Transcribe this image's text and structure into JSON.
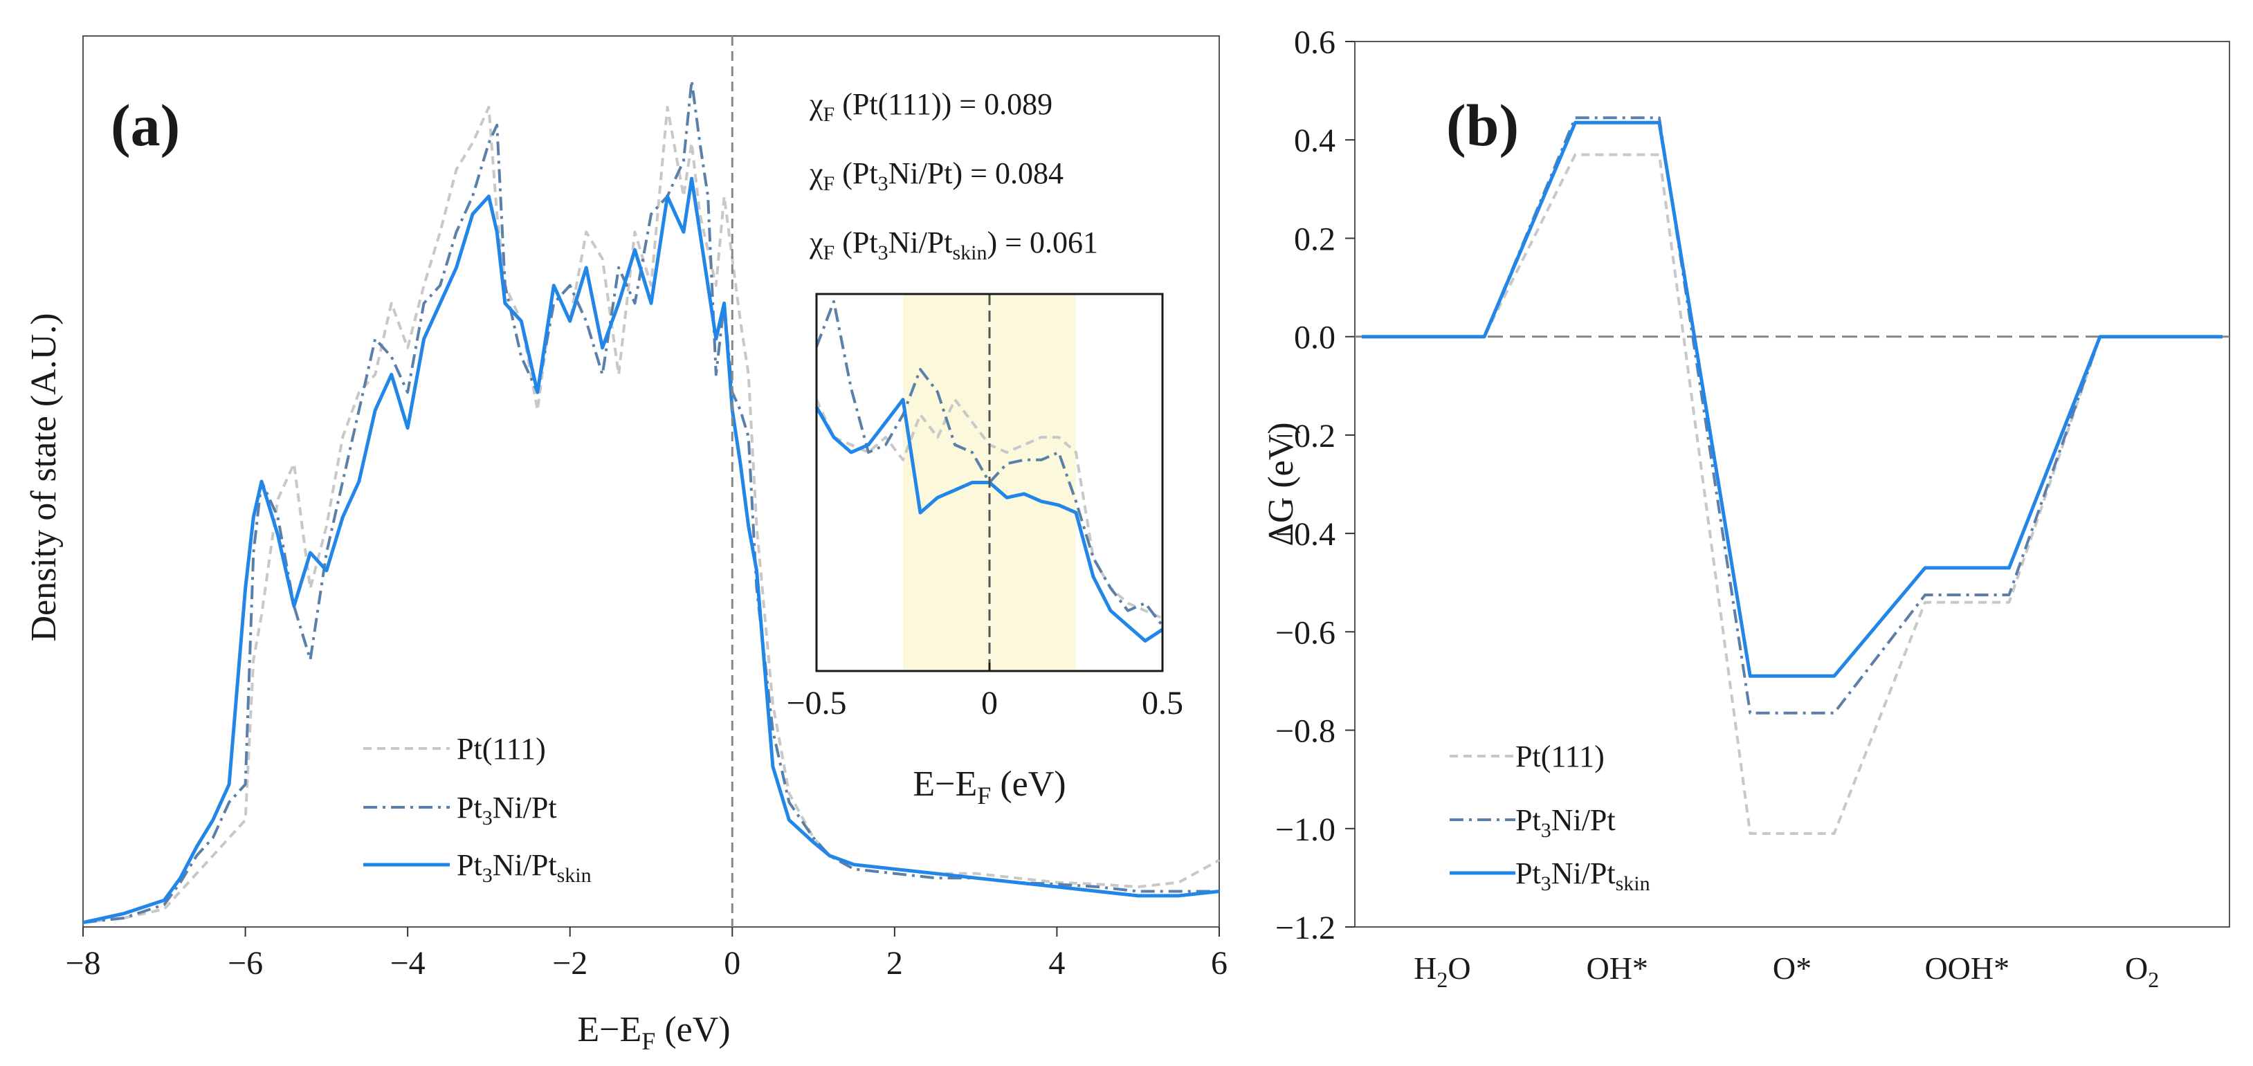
{
  "chart_data": [
    {
      "panel_label": "(a)",
      "type": "line",
      "xlabel": "E−E",
      "xlabel_sub": "F",
      "xlabel_unit": " (eV)",
      "ylabel": "Density of state (A.U.)",
      "xlim": [
        -8,
        6
      ],
      "ylim": [
        0,
        1.0
      ],
      "xticks": [
        "−8",
        "−6",
        "−4",
        "−2",
        "0",
        "2",
        "4",
        "6"
      ],
      "fermi_level_x": 0,
      "annotations": [
        {
          "chi": "χ",
          "sub": "F",
          "pre": " (Pt(111)) = ",
          "value": "0.089"
        },
        {
          "chi": "χ",
          "sub": "F",
          "pre": " (Pt",
          "sub2": "3",
          "mid": "Ni/Pt) = ",
          "value": "0.084"
        },
        {
          "chi": "χ",
          "sub": "F",
          "pre": " (Pt",
          "sub2": "3",
          "mid": "Ni/Pt",
          "sub3": "skin",
          "post": ") = ",
          "value": "0.061"
        }
      ],
      "legend": {
        "placement": "bottom-center",
        "entries": [
          {
            "main": "Pt(111)"
          },
          {
            "main": "Pt",
            "sub": "3",
            "rest": "Ni/Pt"
          },
          {
            "main": "Pt",
            "sub": "3",
            "rest": "Ni/Pt",
            "sub2": "skin"
          }
        ]
      },
      "series": [
        {
          "name": "Pt(111)",
          "color": "#c8c8c8",
          "style": "dashed",
          "x": [
            -8,
            -7.5,
            -7,
            -6.8,
            -6.6,
            -6.4,
            -6.2,
            -6.0,
            -5.9,
            -5.8,
            -5.6,
            -5.4,
            -5.2,
            -5.0,
            -4.8,
            -4.6,
            -4.4,
            -4.2,
            -4.0,
            -3.8,
            -3.6,
            -3.4,
            -3.2,
            -3.0,
            -2.9,
            -2.8,
            -2.6,
            -2.4,
            -2.2,
            -2.0,
            -1.8,
            -1.6,
            -1.4,
            -1.2,
            -1.0,
            -0.8,
            -0.6,
            -0.5,
            -0.4,
            -0.3,
            -0.2,
            -0.1,
            0.0,
            0.1,
            0.2,
            0.3,
            0.5,
            0.7,
            1.0,
            1.2,
            1.5,
            2.0,
            2.5,
            3.0,
            3.5,
            4.0,
            4.5,
            5.0,
            5.5,
            6.0
          ],
          "values": [
            0.005,
            0.01,
            0.02,
            0.04,
            0.06,
            0.08,
            0.1,
            0.12,
            0.3,
            0.35,
            0.48,
            0.52,
            0.38,
            0.45,
            0.55,
            0.6,
            0.62,
            0.7,
            0.65,
            0.72,
            0.78,
            0.85,
            0.88,
            0.92,
            0.8,
            0.72,
            0.68,
            0.58,
            0.72,
            0.68,
            0.78,
            0.75,
            0.62,
            0.78,
            0.72,
            0.92,
            0.82,
            0.88,
            0.8,
            0.76,
            0.72,
            0.82,
            0.75,
            0.68,
            0.62,
            0.45,
            0.25,
            0.15,
            0.1,
            0.08,
            0.07,
            0.065,
            0.06,
            0.06,
            0.055,
            0.05,
            0.048,
            0.045,
            0.05,
            0.075
          ]
        },
        {
          "name": "Pt3Ni/Pt",
          "color": "#5a7fa8",
          "style": "dashdot",
          "x": [
            -8,
            -7.5,
            -7,
            -6.8,
            -6.6,
            -6.4,
            -6.2,
            -6.0,
            -5.9,
            -5.8,
            -5.6,
            -5.4,
            -5.2,
            -5.0,
            -4.8,
            -4.6,
            -4.4,
            -4.2,
            -4.0,
            -3.8,
            -3.6,
            -3.4,
            -3.2,
            -3.0,
            -2.9,
            -2.8,
            -2.6,
            -2.4,
            -2.2,
            -2.0,
            -1.8,
            -1.6,
            -1.4,
            -1.2,
            -1.0,
            -0.8,
            -0.6,
            -0.5,
            -0.4,
            -0.3,
            -0.2,
            -0.1,
            0.0,
            0.1,
            0.2,
            0.3,
            0.5,
            0.7,
            1.0,
            1.2,
            1.5,
            2.0,
            2.5,
            3.0,
            3.5,
            4.0,
            4.5,
            5.0,
            5.5,
            6.0
          ],
          "values": [
            0.005,
            0.01,
            0.025,
            0.05,
            0.08,
            0.1,
            0.14,
            0.16,
            0.42,
            0.5,
            0.46,
            0.36,
            0.3,
            0.42,
            0.5,
            0.58,
            0.66,
            0.64,
            0.6,
            0.7,
            0.72,
            0.78,
            0.82,
            0.88,
            0.9,
            0.72,
            0.64,
            0.6,
            0.7,
            0.72,
            0.68,
            0.62,
            0.74,
            0.7,
            0.8,
            0.82,
            0.86,
            0.95,
            0.88,
            0.82,
            0.62,
            0.7,
            0.6,
            0.58,
            0.55,
            0.38,
            0.22,
            0.14,
            0.1,
            0.08,
            0.065,
            0.06,
            0.055,
            0.055,
            0.05,
            0.048,
            0.045,
            0.04,
            0.04,
            0.04
          ]
        },
        {
          "name": "Pt3Ni/Ptskin",
          "color": "#2186e8",
          "style": "solid",
          "x": [
            -8,
            -7.5,
            -7,
            -6.8,
            -6.6,
            -6.4,
            -6.2,
            -6.0,
            -5.9,
            -5.8,
            -5.6,
            -5.4,
            -5.2,
            -5.0,
            -4.8,
            -4.6,
            -4.4,
            -4.2,
            -4.0,
            -3.8,
            -3.6,
            -3.4,
            -3.2,
            -3.0,
            -2.9,
            -2.8,
            -2.6,
            -2.4,
            -2.2,
            -2.0,
            -1.8,
            -1.6,
            -1.4,
            -1.2,
            -1.0,
            -0.8,
            -0.6,
            -0.5,
            -0.4,
            -0.3,
            -0.2,
            -0.1,
            0.0,
            0.1,
            0.2,
            0.3,
            0.5,
            0.7,
            1.0,
            1.2,
            1.5,
            2.0,
            2.5,
            3.0,
            3.5,
            4.0,
            4.5,
            5.0,
            5.5,
            6.0
          ],
          "values": [
            0.005,
            0.015,
            0.03,
            0.055,
            0.09,
            0.12,
            0.16,
            0.38,
            0.46,
            0.5,
            0.44,
            0.36,
            0.42,
            0.4,
            0.46,
            0.5,
            0.58,
            0.62,
            0.56,
            0.66,
            0.7,
            0.74,
            0.8,
            0.82,
            0.78,
            0.7,
            0.68,
            0.6,
            0.72,
            0.68,
            0.74,
            0.65,
            0.7,
            0.76,
            0.7,
            0.82,
            0.78,
            0.84,
            0.78,
            0.72,
            0.66,
            0.7,
            0.58,
            0.52,
            0.45,
            0.4,
            0.18,
            0.12,
            0.095,
            0.08,
            0.07,
            0.065,
            0.06,
            0.055,
            0.05,
            0.045,
            0.04,
            0.035,
            0.035,
            0.04
          ]
        }
      ],
      "inset": {
        "xlim": [
          -0.5,
          0.5
        ],
        "ylim": [
          0,
          1
        ],
        "xticks": [
          "−0.5",
          "0",
          "0.5"
        ],
        "xlabel": "E−E",
        "xlabel_sub": "F",
        "xlabel_unit": " (eV)",
        "highlight_range": [
          -0.25,
          0.25
        ],
        "highlight_color": "#fbf8dc",
        "series": [
          {
            "name": "Pt(111)",
            "x": [
              -0.5,
              -0.45,
              -0.4,
              -0.35,
              -0.3,
              -0.25,
              -0.2,
              -0.15,
              -0.1,
              -0.05,
              0.0,
              0.05,
              0.1,
              0.15,
              0.2,
              0.25,
              0.3,
              0.35,
              0.4,
              0.45,
              0.5
            ],
            "values": [
              0.72,
              0.62,
              0.6,
              0.58,
              0.62,
              0.56,
              0.68,
              0.62,
              0.72,
              0.66,
              0.6,
              0.58,
              0.6,
              0.62,
              0.62,
              0.58,
              0.3,
              0.22,
              0.18,
              0.16,
              0.14
            ]
          },
          {
            "name": "Pt3Ni/Pt",
            "x": [
              -0.5,
              -0.45,
              -0.4,
              -0.35,
              -0.3,
              -0.25,
              -0.2,
              -0.15,
              -0.1,
              -0.05,
              0.0,
              0.05,
              0.1,
              0.15,
              0.2,
              0.25,
              0.3,
              0.35,
              0.4,
              0.45,
              0.5
            ],
            "values": [
              0.86,
              0.98,
              0.75,
              0.58,
              0.6,
              0.68,
              0.8,
              0.74,
              0.6,
              0.58,
              0.5,
              0.55,
              0.56,
              0.56,
              0.58,
              0.45,
              0.3,
              0.22,
              0.16,
              0.18,
              0.12
            ]
          },
          {
            "name": "Pt3Ni/Ptskin",
            "x": [
              -0.5,
              -0.45,
              -0.4,
              -0.35,
              -0.3,
              -0.25,
              -0.2,
              -0.15,
              -0.1,
              -0.05,
              0.0,
              0.05,
              0.1,
              0.15,
              0.2,
              0.25,
              0.3,
              0.35,
              0.4,
              0.45,
              0.5
            ],
            "values": [
              0.7,
              0.62,
              0.58,
              0.6,
              0.66,
              0.72,
              0.42,
              0.46,
              0.48,
              0.5,
              0.5,
              0.46,
              0.47,
              0.45,
              0.44,
              0.42,
              0.25,
              0.16,
              0.12,
              0.08,
              0.11
            ]
          }
        ]
      }
    },
    {
      "panel_label": "(b)",
      "type": "line",
      "ylabel": "ΔG (eV)",
      "ylim": [
        -1.2,
        0.6
      ],
      "yticks": [
        "0.6",
        "0.4",
        "0.2",
        "0.0",
        "−0.2",
        "−0.4",
        "−0.6",
        "−0.8",
        "−1.0",
        "−1.2"
      ],
      "ytick_values": [
        0.6,
        0.4,
        0.2,
        0.0,
        -0.2,
        -0.4,
        -0.6,
        -0.8,
        -1.0,
        -1.2
      ],
      "categories": [
        {
          "main": "H",
          "sub": "2",
          "rest": "O"
        },
        {
          "main": "OH*"
        },
        {
          "main": "O*"
        },
        {
          "main": "OOH*"
        },
        {
          "main": "O",
          "sub": "2"
        }
      ],
      "zero_line": 0.0,
      "legend": {
        "placement": "bottom-left",
        "entries": [
          {
            "main": "Pt(111)"
          },
          {
            "main": "Pt",
            "sub": "3",
            "rest": "Ni/Pt"
          },
          {
            "main": "Pt",
            "sub": "3",
            "rest": "Ni/Pt",
            "sub2": "skin"
          }
        ]
      },
      "series": [
        {
          "name": "Pt(111)",
          "color": "#c8c8c8",
          "style": "dashed",
          "values": [
            0.0,
            0.37,
            -1.01,
            -0.54,
            0.0
          ]
        },
        {
          "name": "Pt3Ni/Pt",
          "color": "#5a7fa8",
          "style": "dashdot",
          "values": [
            0.0,
            0.445,
            -0.765,
            -0.525,
            0.0
          ]
        },
        {
          "name": "Pt3Ni/Ptskin",
          "color": "#2186e8",
          "style": "solid",
          "values": [
            0.0,
            0.435,
            -0.69,
            -0.47,
            0.0
          ]
        }
      ]
    }
  ]
}
